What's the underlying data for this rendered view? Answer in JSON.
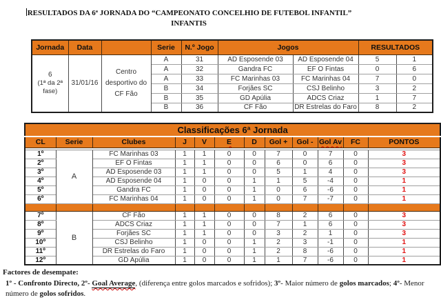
{
  "doc": {
    "title_line1": "RESULTADOS DA 6ª JORNADA DO “CAMPEONATO CONCELHIO DE FUTEBOL INFANTIL”",
    "title_line2": "INFANTIS"
  },
  "results_table": {
    "headers": [
      "Jornada",
      "Data",
      "",
      "Serie",
      "N.º Jogo",
      "Jogos",
      "RESULTADOS"
    ],
    "jornada": "6",
    "jornada_phase": "(1ª da 2ª fase)",
    "date": "31/01/16",
    "venue": "Centro desportivo do CF Fão",
    "rows": [
      {
        "serie": "A",
        "jogo": "31",
        "home": "AD Esposende 03",
        "away": "AD Esposende 04",
        "score_home": "5",
        "score_away": "1"
      },
      {
        "serie": "A",
        "jogo": "32",
        "home": "Gandra FC",
        "away": "EF O Fintas",
        "score_home": "0",
        "score_away": "6"
      },
      {
        "serie": "A",
        "jogo": "33",
        "home": "FC Marinhas 03",
        "away": "FC Marinhas 04",
        "score_home": "7",
        "score_away": "0"
      },
      {
        "serie": "B",
        "jogo": "34",
        "home": "Forjães SC",
        "away": "CSJ Belinho",
        "score_home": "3",
        "score_away": "2"
      },
      {
        "serie": "B",
        "jogo": "35",
        "home": "GD Apúlia",
        "away": "ADCS Criaz",
        "score_home": "1",
        "score_away": "7"
      },
      {
        "serie": "B",
        "jogo": "36",
        "home": "CF Fão",
        "away": "DR Estrelas do Faro",
        "score_home": "8",
        "score_away": "2"
      }
    ]
  },
  "classification_table": {
    "title": "Classificações 6ª Jornada",
    "headers": [
      "CL",
      "Serie",
      "Clubes",
      "J",
      "V",
      "E",
      "D",
      "Gol +",
      "Gol -",
      "Gol Av",
      "FC",
      "PONTOS"
    ],
    "spellcheck_marked": [
      "E",
      "Gol Av"
    ],
    "series": [
      {
        "serie": "A",
        "rows": [
          {
            "pos": "1º",
            "club": "FC Marinhas 03",
            "j": "1",
            "v": "1",
            "e": "0",
            "d": "0",
            "gp": "7",
            "gc": "0",
            "av": "7",
            "fc": "0",
            "pts": "3"
          },
          {
            "pos": "2º",
            "club": "EF O Fintas",
            "j": "1",
            "v": "1",
            "e": "0",
            "d": "0",
            "gp": "6",
            "gc": "0",
            "av": "6",
            "fc": "0",
            "pts": "3"
          },
          {
            "pos": "3º",
            "club": "AD Esposende 03",
            "j": "1",
            "v": "1",
            "e": "0",
            "d": "0",
            "gp": "5",
            "gc": "1",
            "av": "4",
            "fc": "0",
            "pts": "3"
          },
          {
            "pos": "4º",
            "club": "AD Esposende 04",
            "j": "1",
            "v": "0",
            "e": "0",
            "d": "1",
            "gp": "1",
            "gc": "5",
            "av": "-4",
            "fc": "0",
            "pts": "1"
          },
          {
            "pos": "5º",
            "club": "Gandra FC",
            "j": "1",
            "v": "0",
            "e": "0",
            "d": "1",
            "gp": "0",
            "gc": "6",
            "av": "-6",
            "fc": "0",
            "pts": "1"
          },
          {
            "pos": "6º",
            "club": "FC Marinhas 04",
            "j": "1",
            "v": "0",
            "e": "0",
            "d": "1",
            "gp": "0",
            "gc": "7",
            "av": "-7",
            "fc": "0",
            "pts": "1"
          }
        ]
      },
      {
        "serie": "B",
        "rows": [
          {
            "pos": "7º",
            "club": "CF Fão",
            "j": "1",
            "v": "1",
            "e": "0",
            "d": "0",
            "gp": "8",
            "gc": "2",
            "av": "6",
            "fc": "0",
            "pts": "3"
          },
          {
            "pos": "8º",
            "club": "ADCS Criaz",
            "j": "1",
            "v": "1",
            "e": "0",
            "d": "0",
            "gp": "7",
            "gc": "1",
            "av": "6",
            "fc": "0",
            "pts": "3"
          },
          {
            "pos": "9º",
            "club": "Forjães SC",
            "j": "1",
            "v": "1",
            "e": "0",
            "d": "0",
            "gp": "3",
            "gc": "2",
            "av": "1",
            "fc": "0",
            "pts": "3"
          },
          {
            "pos": "10º",
            "club": "CSJ Belinho",
            "j": "1",
            "v": "0",
            "e": "0",
            "d": "1",
            "gp": "2",
            "gc": "3",
            "av": "-1",
            "fc": "0",
            "pts": "1"
          },
          {
            "pos": "11º",
            "club": "DR Estrelas do Faro",
            "j": "1",
            "v": "0",
            "e": "0",
            "d": "1",
            "gp": "2",
            "gc": "8",
            "av": "-6",
            "fc": "0",
            "pts": "1"
          },
          {
            "pos": "12º",
            "club": "GD Apúlia",
            "j": "1",
            "v": "0",
            "e": "0",
            "d": "1",
            "gp": "1",
            "gc": "7",
            "av": "-6",
            "fc": "0",
            "pts": "1"
          }
        ]
      }
    ]
  },
  "footer": {
    "heading": "Factores de desempate:",
    "segments": [
      {
        "text": "1º - Confronto Directo, 2º- ",
        "bold": true
      },
      {
        "text": "Goal Average",
        "bold": true,
        "underline": true
      },
      {
        "text": ", (diferença entre golos marcados e sofridos); ",
        "bold": false
      },
      {
        "text": "3º",
        "bold": true
      },
      {
        "text": "- Maior número de ",
        "bold": false
      },
      {
        "text": "golos marcados",
        "bold": true
      },
      {
        "text": "; ",
        "bold": false
      },
      {
        "text": "4º",
        "bold": true
      },
      {
        "text": "- Menor número de ",
        "bold": false
      },
      {
        "text": "golos sofridos",
        "bold": true
      },
      {
        "text": ".",
        "bold": false
      }
    ]
  },
  "colors": {
    "header_orange": "#E6791C",
    "points_red": "#E01111",
    "spellcheck_red": "#CC0000"
  }
}
